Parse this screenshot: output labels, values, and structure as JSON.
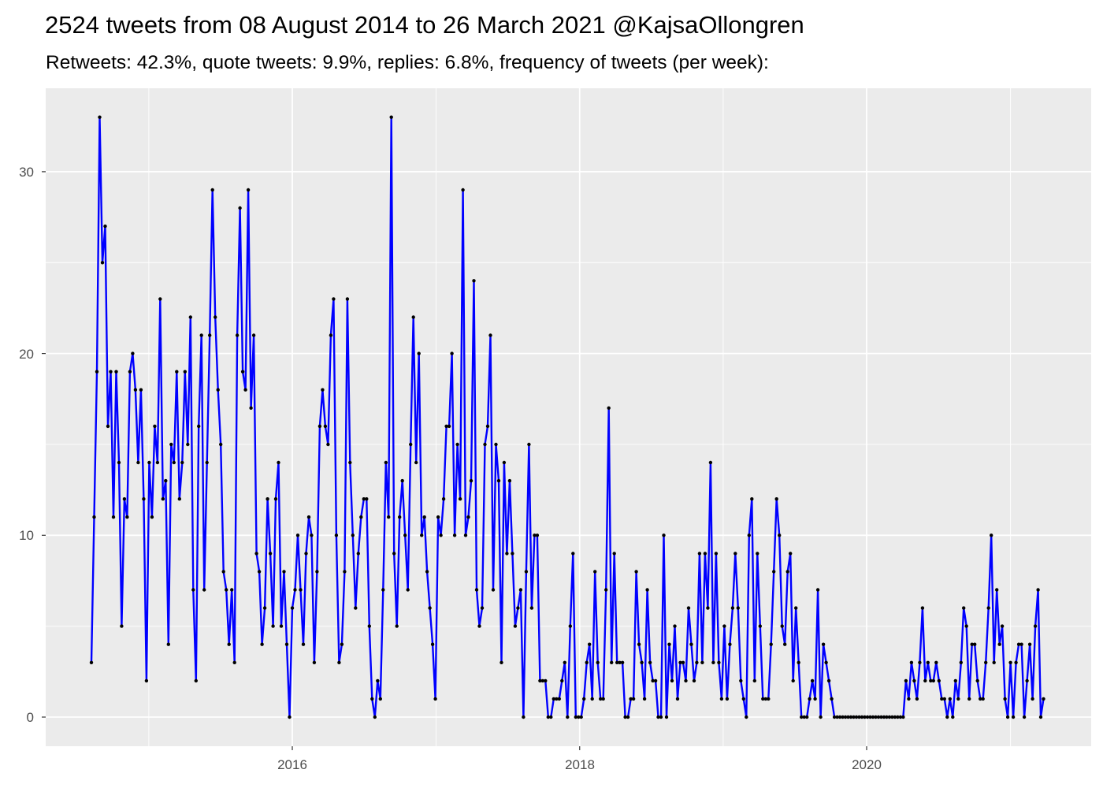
{
  "chart_data": {
    "type": "line",
    "title": "2524 tweets from 08 August 2014 to 26 March 2021 @KajsaOllongren",
    "subtitle": "Retweets: 42.3%, quote tweets: 9.9%, replies: 6.8%, frequency of tweets (per week):",
    "xlabel": "",
    "ylabel": "",
    "x": {
      "start": "2014-08-08",
      "frequency": "weekly"
    },
    "x_ticks": [
      "2016",
      "2018",
      "2020"
    ],
    "y_ticks": [
      "0",
      "10",
      "20",
      "30"
    ],
    "ylim": [
      -1.6,
      34.6
    ],
    "xlim": [
      "2014-06-15",
      "2021-05-20"
    ],
    "grid": true,
    "line_color": "#0000FF",
    "point_color": "#000000",
    "panel_background": "#EBEBEB",
    "values": [
      3,
      11,
      19,
      33,
      25,
      27,
      16,
      19,
      11,
      19,
      14,
      5,
      12,
      11,
      19,
      20,
      18,
      14,
      18,
      12,
      2,
      14,
      11,
      16,
      14,
      23,
      12,
      13,
      4,
      15,
      14,
      19,
      12,
      14,
      19,
      15,
      22,
      7,
      2,
      16,
      21,
      7,
      14,
      21,
      29,
      22,
      18,
      15,
      8,
      7,
      4,
      7,
      3,
      21,
      28,
      19,
      18,
      29,
      17,
      21,
      9,
      8,
      4,
      6,
      12,
      9,
      5,
      12,
      14,
      5,
      8,
      4,
      0,
      6,
      7,
      10,
      7,
      4,
      9,
      11,
      10,
      3,
      8,
      16,
      18,
      16,
      15,
      21,
      23,
      10,
      3,
      4,
      8,
      23,
      14,
      10,
      6,
      9,
      11,
      12,
      12,
      5,
      1,
      0,
      2,
      1,
      7,
      14,
      11,
      33,
      9,
      5,
      11,
      13,
      10,
      7,
      15,
      22,
      14,
      20,
      10,
      11,
      8,
      6,
      4,
      1,
      11,
      10,
      12,
      16,
      16,
      20,
      10,
      15,
      12,
      29,
      10,
      11,
      13,
      24,
      7,
      5,
      6,
      15,
      16,
      21,
      7,
      15,
      13,
      3,
      14,
      9,
      13,
      9,
      5,
      6,
      7,
      0,
      8,
      15,
      6,
      10,
      10,
      2,
      2,
      2,
      0,
      0,
      1,
      1,
      1,
      2,
      3,
      0,
      5,
      9,
      0,
      0,
      0,
      1,
      3,
      4,
      1,
      8,
      3,
      1,
      1,
      7,
      17,
      3,
      9,
      3,
      3,
      3,
      0,
      0,
      1,
      1,
      8,
      4,
      3,
      1,
      7,
      3,
      2,
      2,
      0,
      0,
      10,
      0,
      4,
      2,
      5,
      1,
      3,
      3,
      2,
      6,
      4,
      2,
      3,
      9,
      3,
      9,
      6,
      14,
      3,
      9,
      3,
      1,
      5,
      1,
      4,
      6,
      9,
      6,
      2,
      1,
      0,
      10,
      12,
      2,
      9,
      5,
      1,
      1,
      1,
      4,
      8,
      12,
      10,
      5,
      4,
      8,
      9,
      2,
      6,
      3,
      0,
      0,
      0,
      1,
      2,
      1,
      7,
      0,
      4,
      3,
      2,
      1,
      0,
      0,
      0,
      0,
      0,
      0,
      0,
      0,
      0,
      0,
      0,
      0,
      0,
      0,
      0,
      0,
      0,
      0,
      0,
      0,
      0,
      0,
      0,
      0,
      0,
      0,
      2,
      1,
      3,
      2,
      1,
      3,
      6,
      2,
      3,
      2,
      2,
      3,
      2,
      1,
      1,
      0,
      1,
      0,
      2,
      1,
      3,
      6,
      5,
      1,
      4,
      4,
      2,
      1,
      1,
      3,
      6,
      10,
      3,
      7,
      4,
      5,
      1,
      0,
      3,
      0,
      3,
      4,
      4,
      0,
      2,
      4,
      1,
      5,
      7,
      0,
      1
    ]
  }
}
